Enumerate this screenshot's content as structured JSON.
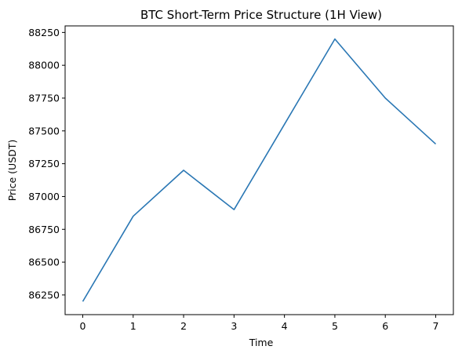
{
  "chart_data": {
    "type": "line",
    "title": "BTC Short-Term Price Structure (1H View)",
    "xlabel": "Time",
    "ylabel": "Price (USDT)",
    "x": [
      0,
      1,
      2,
      3,
      4,
      5,
      6,
      7
    ],
    "series": [
      {
        "values": [
          86200,
          86850,
          87200,
          86900,
          87550,
          88200,
          87750,
          87400
        ],
        "color": "#2a77b4"
      }
    ],
    "xlim": [
      -0.35,
      7.35
    ],
    "ylim": [
      86100,
      88300
    ],
    "xticks": [
      "0",
      "1",
      "2",
      "3",
      "4",
      "5",
      "6",
      "7"
    ],
    "yticks": [
      "86250",
      "86500",
      "86750",
      "87000",
      "87250",
      "87500",
      "87750",
      "88000",
      "88250"
    ],
    "grid": false,
    "legend": "none"
  }
}
